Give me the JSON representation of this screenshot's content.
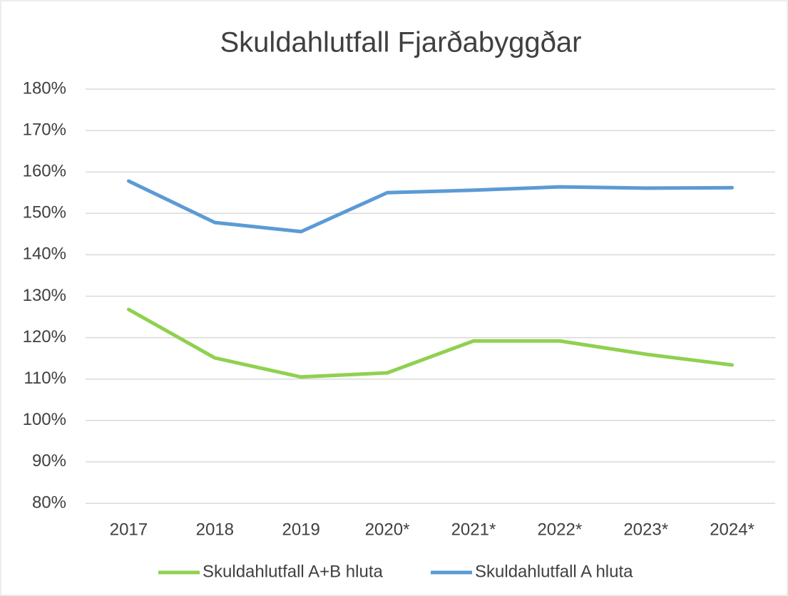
{
  "chart_data": {
    "type": "line",
    "title": "Skuldahlutfall Fjarðabyggðar",
    "categories": [
      "2017",
      "2018",
      "2019",
      "2020*",
      "2021*",
      "2022*",
      "2023*",
      "2024*"
    ],
    "series": [
      {
        "name": "Skuldahlutfall A+B hluta",
        "color": "#8fd14f",
        "values": [
          126.8,
          115.1,
          110.5,
          111.5,
          119.2,
          119.2,
          116.0,
          113.4
        ]
      },
      {
        "name": "Skuldahlutfall A hluta",
        "color": "#5b9bd5",
        "values": [
          157.8,
          147.8,
          145.6,
          155.0,
          155.6,
          156.4,
          156.1,
          156.2
        ]
      }
    ],
    "ylim": [
      80,
      180
    ],
    "yticks": [
      {
        "value": 80,
        "label": "80%"
      },
      {
        "value": 90,
        "label": "90%"
      },
      {
        "value": 100,
        "label": "100%"
      },
      {
        "value": 110,
        "label": "110%"
      },
      {
        "value": 120,
        "label": "120%"
      },
      {
        "value": 130,
        "label": "130%"
      },
      {
        "value": 140,
        "label": "140%"
      },
      {
        "value": 150,
        "label": "150%"
      },
      {
        "value": 160,
        "label": "160%"
      },
      {
        "value": 170,
        "label": "170%"
      },
      {
        "value": 180,
        "label": "180%"
      }
    ],
    "grid": true,
    "legend": "bottom"
  }
}
